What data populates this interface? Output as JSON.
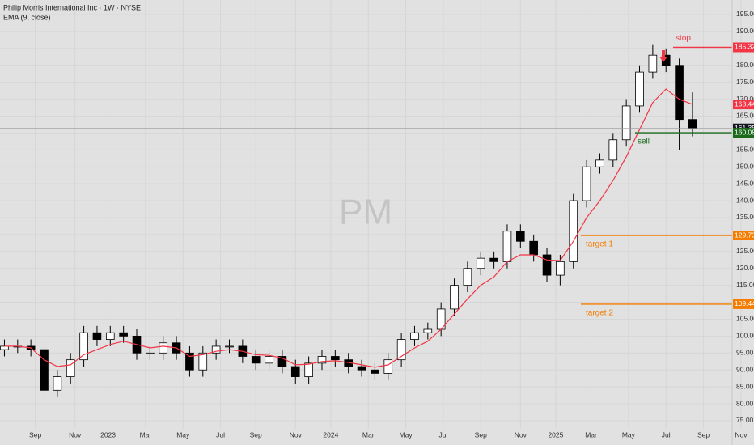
{
  "chart_data": {
    "type": "candlestick",
    "title": "Philip Morris International Inc · 1W · NYSE",
    "subtitle": "EMA (9, close)",
    "watermark": "PM",
    "x": [
      0,
      3,
      6,
      9,
      12,
      15,
      18,
      21,
      24,
      27,
      30,
      33,
      36,
      39,
      42,
      45,
      48,
      51,
      54,
      57,
      60,
      63,
      66,
      69,
      72,
      75,
      78,
      81,
      84,
      87,
      90,
      93,
      96,
      99,
      102,
      105,
      108,
      111,
      114,
      117,
      120,
      123,
      126,
      129,
      132,
      135,
      138,
      141,
      144,
      147,
      150,
      153,
      156
    ],
    "open": [
      96,
      97,
      97,
      96,
      84,
      88,
      93,
      101,
      99,
      101,
      100,
      95,
      95,
      98,
      95,
      90,
      95,
      97,
      97,
      94,
      92,
      94,
      91,
      88,
      92,
      94,
      93,
      91,
      90,
      89,
      93,
      99,
      101,
      102,
      108,
      115,
      120,
      123,
      122,
      131,
      128,
      124,
      118,
      122,
      140,
      150,
      152,
      158,
      168,
      178,
      183,
      180,
      164
    ],
    "high": [
      99,
      99,
      99,
      98,
      90,
      95,
      103,
      103,
      103,
      103,
      102,
      97,
      100,
      100,
      97,
      97,
      99,
      99,
      99,
      96,
      96,
      96,
      93,
      94,
      96,
      96,
      95,
      93,
      92,
      95,
      101,
      103,
      104,
      110,
      117,
      122,
      125,
      125,
      133,
      133,
      130,
      126,
      124,
      142,
      152,
      154,
      160,
      170,
      180,
      186,
      185,
      182,
      172
    ],
    "low": [
      94,
      95,
      94,
      82,
      82,
      86,
      91,
      97,
      97,
      98,
      93,
      93,
      93,
      93,
      88,
      88,
      93,
      95,
      92,
      90,
      90,
      89,
      86,
      86,
      90,
      91,
      89,
      88,
      87,
      87,
      91,
      97,
      99,
      100,
      106,
      113,
      118,
      120,
      120,
      126,
      122,
      116,
      115,
      120,
      138,
      148,
      150,
      156,
      166,
      176,
      178,
      155,
      159
    ],
    "close": [
      97,
      97,
      96,
      84,
      88,
      93,
      101,
      99,
      101,
      100,
      95,
      95,
      98,
      95,
      90,
      95,
      97,
      97,
      94,
      92,
      94,
      91,
      88,
      92,
      94,
      93,
      91,
      90,
      89,
      93,
      99,
      101,
      102,
      108,
      115,
      120,
      123,
      122,
      131,
      128,
      124,
      118,
      122,
      140,
      150,
      152,
      158,
      168,
      178,
      183,
      180,
      164,
      161.35
    ],
    "ema": {
      "name": "EMA (9, close)",
      "color": "#f23645",
      "values": [
        97,
        97,
        96.5,
        93,
        91,
        91.5,
        94.5,
        96,
        97.5,
        98.5,
        97.5,
        96.5,
        97,
        96.5,
        94,
        94.5,
        95.5,
        96,
        95.5,
        94.5,
        94.3,
        93.5,
        91.5,
        91.7,
        92.5,
        92.7,
        92.2,
        91.5,
        90.8,
        91.5,
        94,
        96.5,
        98.5,
        102,
        106.5,
        111,
        115,
        117.5,
        122,
        124,
        124,
        122.5,
        122.3,
        128,
        135,
        140,
        146,
        153,
        161,
        169,
        173,
        170,
        168.44
      ]
    },
    "ema_last": 168.44,
    "last_price": 161.35,
    "levels": [
      {
        "name": "stop",
        "value": 185.32,
        "color": "#f23645"
      },
      {
        "name": "sell",
        "value": 160.08,
        "color": "#1b6b1b"
      },
      {
        "name": "target 1",
        "value": 129.73,
        "color": "#f57c00"
      },
      {
        "name": "target 2",
        "value": 109.44,
        "color": "#f57c00"
      }
    ],
    "xlim": [
      -1,
      165
    ],
    "xticks": [
      {
        "value": 7,
        "label": "Sep"
      },
      {
        "value": 16,
        "label": "Nov"
      },
      {
        "value": 23.5,
        "label": "2023"
      },
      {
        "value": 32,
        "label": "Mar"
      },
      {
        "value": 40.5,
        "label": "May"
      },
      {
        "value": 49,
        "label": "Jul"
      },
      {
        "value": 57,
        "label": "Sep"
      },
      {
        "value": 66,
        "label": "Nov"
      },
      {
        "value": 74,
        "label": "2024"
      },
      {
        "value": 82.5,
        "label": "Mar"
      },
      {
        "value": 91,
        "label": "May"
      },
      {
        "value": 99.5,
        "label": "Jul"
      },
      {
        "value": 108,
        "label": "Sep"
      },
      {
        "value": 117,
        "label": "Nov"
      },
      {
        "value": 125,
        "label": "2025"
      },
      {
        "value": 133,
        "label": "Mar"
      },
      {
        "value": 141.5,
        "label": "May"
      },
      {
        "value": 150,
        "label": "Jul"
      },
      {
        "value": 158.5,
        "label": "Sep"
      },
      {
        "value": 167,
        "label": "Nov"
      }
    ],
    "ylim": [
      72.6,
      199.3
    ],
    "yticks": [
      {
        "value": 75,
        "label": "75.00"
      },
      {
        "value": 80,
        "label": "80.00"
      },
      {
        "value": 85,
        "label": "85.00"
      },
      {
        "value": 90,
        "label": "90.00"
      },
      {
        "value": 95,
        "label": "95.00"
      },
      {
        "value": 100,
        "label": "100.00"
      },
      {
        "value": 105,
        "label": "105.00"
      },
      {
        "value": 110,
        "label": "110.00"
      },
      {
        "value": 115,
        "label": "115.00"
      },
      {
        "value": 120,
        "label": "120.00"
      },
      {
        "value": 125,
        "label": "125.00"
      },
      {
        "value": 130,
        "label": "130.00"
      },
      {
        "value": 135,
        "label": "135.00"
      },
      {
        "value": 140,
        "label": "140.00"
      },
      {
        "value": 145,
        "label": "145.00"
      },
      {
        "value": 150,
        "label": "150.00"
      },
      {
        "value": 155,
        "label": "155.00"
      },
      {
        "value": 160,
        "label": "160.00"
      },
      {
        "value": 165,
        "label": "165.00"
      },
      {
        "value": 170,
        "label": "170.00"
      },
      {
        "value": 175,
        "label": "175.00"
      },
      {
        "value": 180,
        "label": "180.00"
      },
      {
        "value": 185,
        "label": "185.00"
      },
      {
        "value": 190,
        "label": "190.00"
      },
      {
        "value": 195,
        "label": "195.00"
      }
    ],
    "grid": true,
    "up_color": "#ffffff",
    "down_color": "#000000"
  }
}
